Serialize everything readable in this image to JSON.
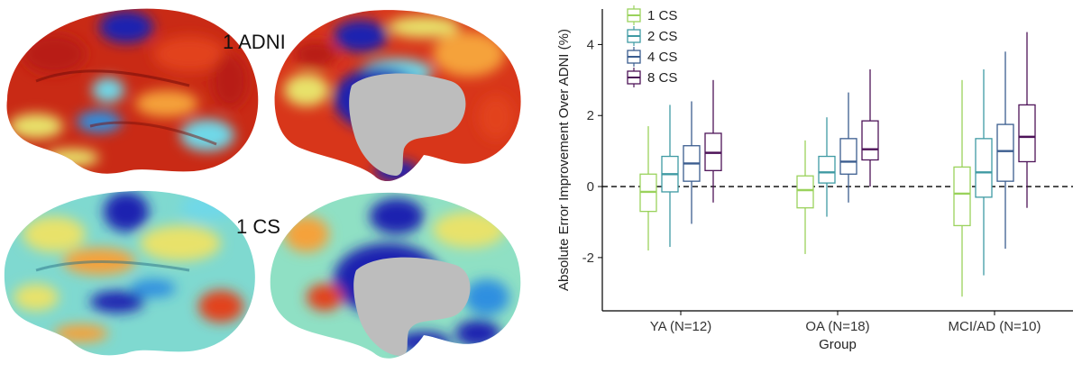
{
  "brain_panel": {
    "top_label": "1 ADNI",
    "bottom_label": "1 CS",
    "colormap": [
      "#1a20b0",
      "#2d8fe0",
      "#6fd8e8",
      "#e8e26a",
      "#f5a23a",
      "#e2431c",
      "#b81a12"
    ]
  },
  "chart_data": {
    "type": "boxplot",
    "title": "",
    "xlabel": "Group",
    "ylabel": "Absolute Error Improvement Over ADNI (%)",
    "ylim": [
      -3.5,
      5
    ],
    "yticks": [
      -2,
      0,
      2,
      4
    ],
    "yticklabels": [
      "-2",
      "0",
      "2",
      "4"
    ],
    "reference_line": {
      "y": 0,
      "style": "dashed"
    },
    "categories": [
      "YA (N=12)",
      "OA (N=18)",
      "MCI/AD (N=10)"
    ],
    "legend": {
      "position": "top-left"
    },
    "series": [
      {
        "name": "1 CS",
        "color": "#9ad25c",
        "boxes": [
          {
            "whisker_low": -1.8,
            "q1": -0.7,
            "median": -0.15,
            "q3": 0.35,
            "whisker_high": 1.7
          },
          {
            "whisker_low": -1.9,
            "q1": -0.6,
            "median": -0.1,
            "q3": 0.3,
            "whisker_high": 1.3
          },
          {
            "whisker_low": -3.1,
            "q1": -1.1,
            "median": -0.2,
            "q3": 0.55,
            "whisker_high": 3.0
          }
        ]
      },
      {
        "name": "2 CS",
        "color": "#3f9aa3",
        "boxes": [
          {
            "whisker_low": -1.7,
            "q1": -0.15,
            "median": 0.35,
            "q3": 0.85,
            "whisker_high": 2.3
          },
          {
            "whisker_low": -0.85,
            "q1": 0.1,
            "median": 0.4,
            "q3": 0.85,
            "whisker_high": 1.95
          },
          {
            "whisker_low": -2.5,
            "q1": -0.3,
            "median": 0.4,
            "q3": 1.35,
            "whisker_high": 3.3
          }
        ]
      },
      {
        "name": "4 CS",
        "color": "#3b5d8f",
        "boxes": [
          {
            "whisker_low": -1.05,
            "q1": 0.15,
            "median": 0.65,
            "q3": 1.15,
            "whisker_high": 2.4
          },
          {
            "whisker_low": -0.45,
            "q1": 0.35,
            "median": 0.7,
            "q3": 1.35,
            "whisker_high": 2.65
          },
          {
            "whisker_low": -1.75,
            "q1": 0.15,
            "median": 1.0,
            "q3": 1.75,
            "whisker_high": 3.8
          }
        ]
      },
      {
        "name": "8 CS",
        "color": "#4d1358",
        "boxes": [
          {
            "whisker_low": -0.45,
            "q1": 0.45,
            "median": 0.95,
            "q3": 1.5,
            "whisker_high": 3.0
          },
          {
            "whisker_low": 0.0,
            "q1": 0.75,
            "median": 1.05,
            "q3": 1.85,
            "whisker_high": 3.3
          },
          {
            "whisker_low": -0.6,
            "q1": 0.7,
            "median": 1.4,
            "q3": 2.3,
            "whisker_high": 4.35
          }
        ]
      }
    ]
  }
}
